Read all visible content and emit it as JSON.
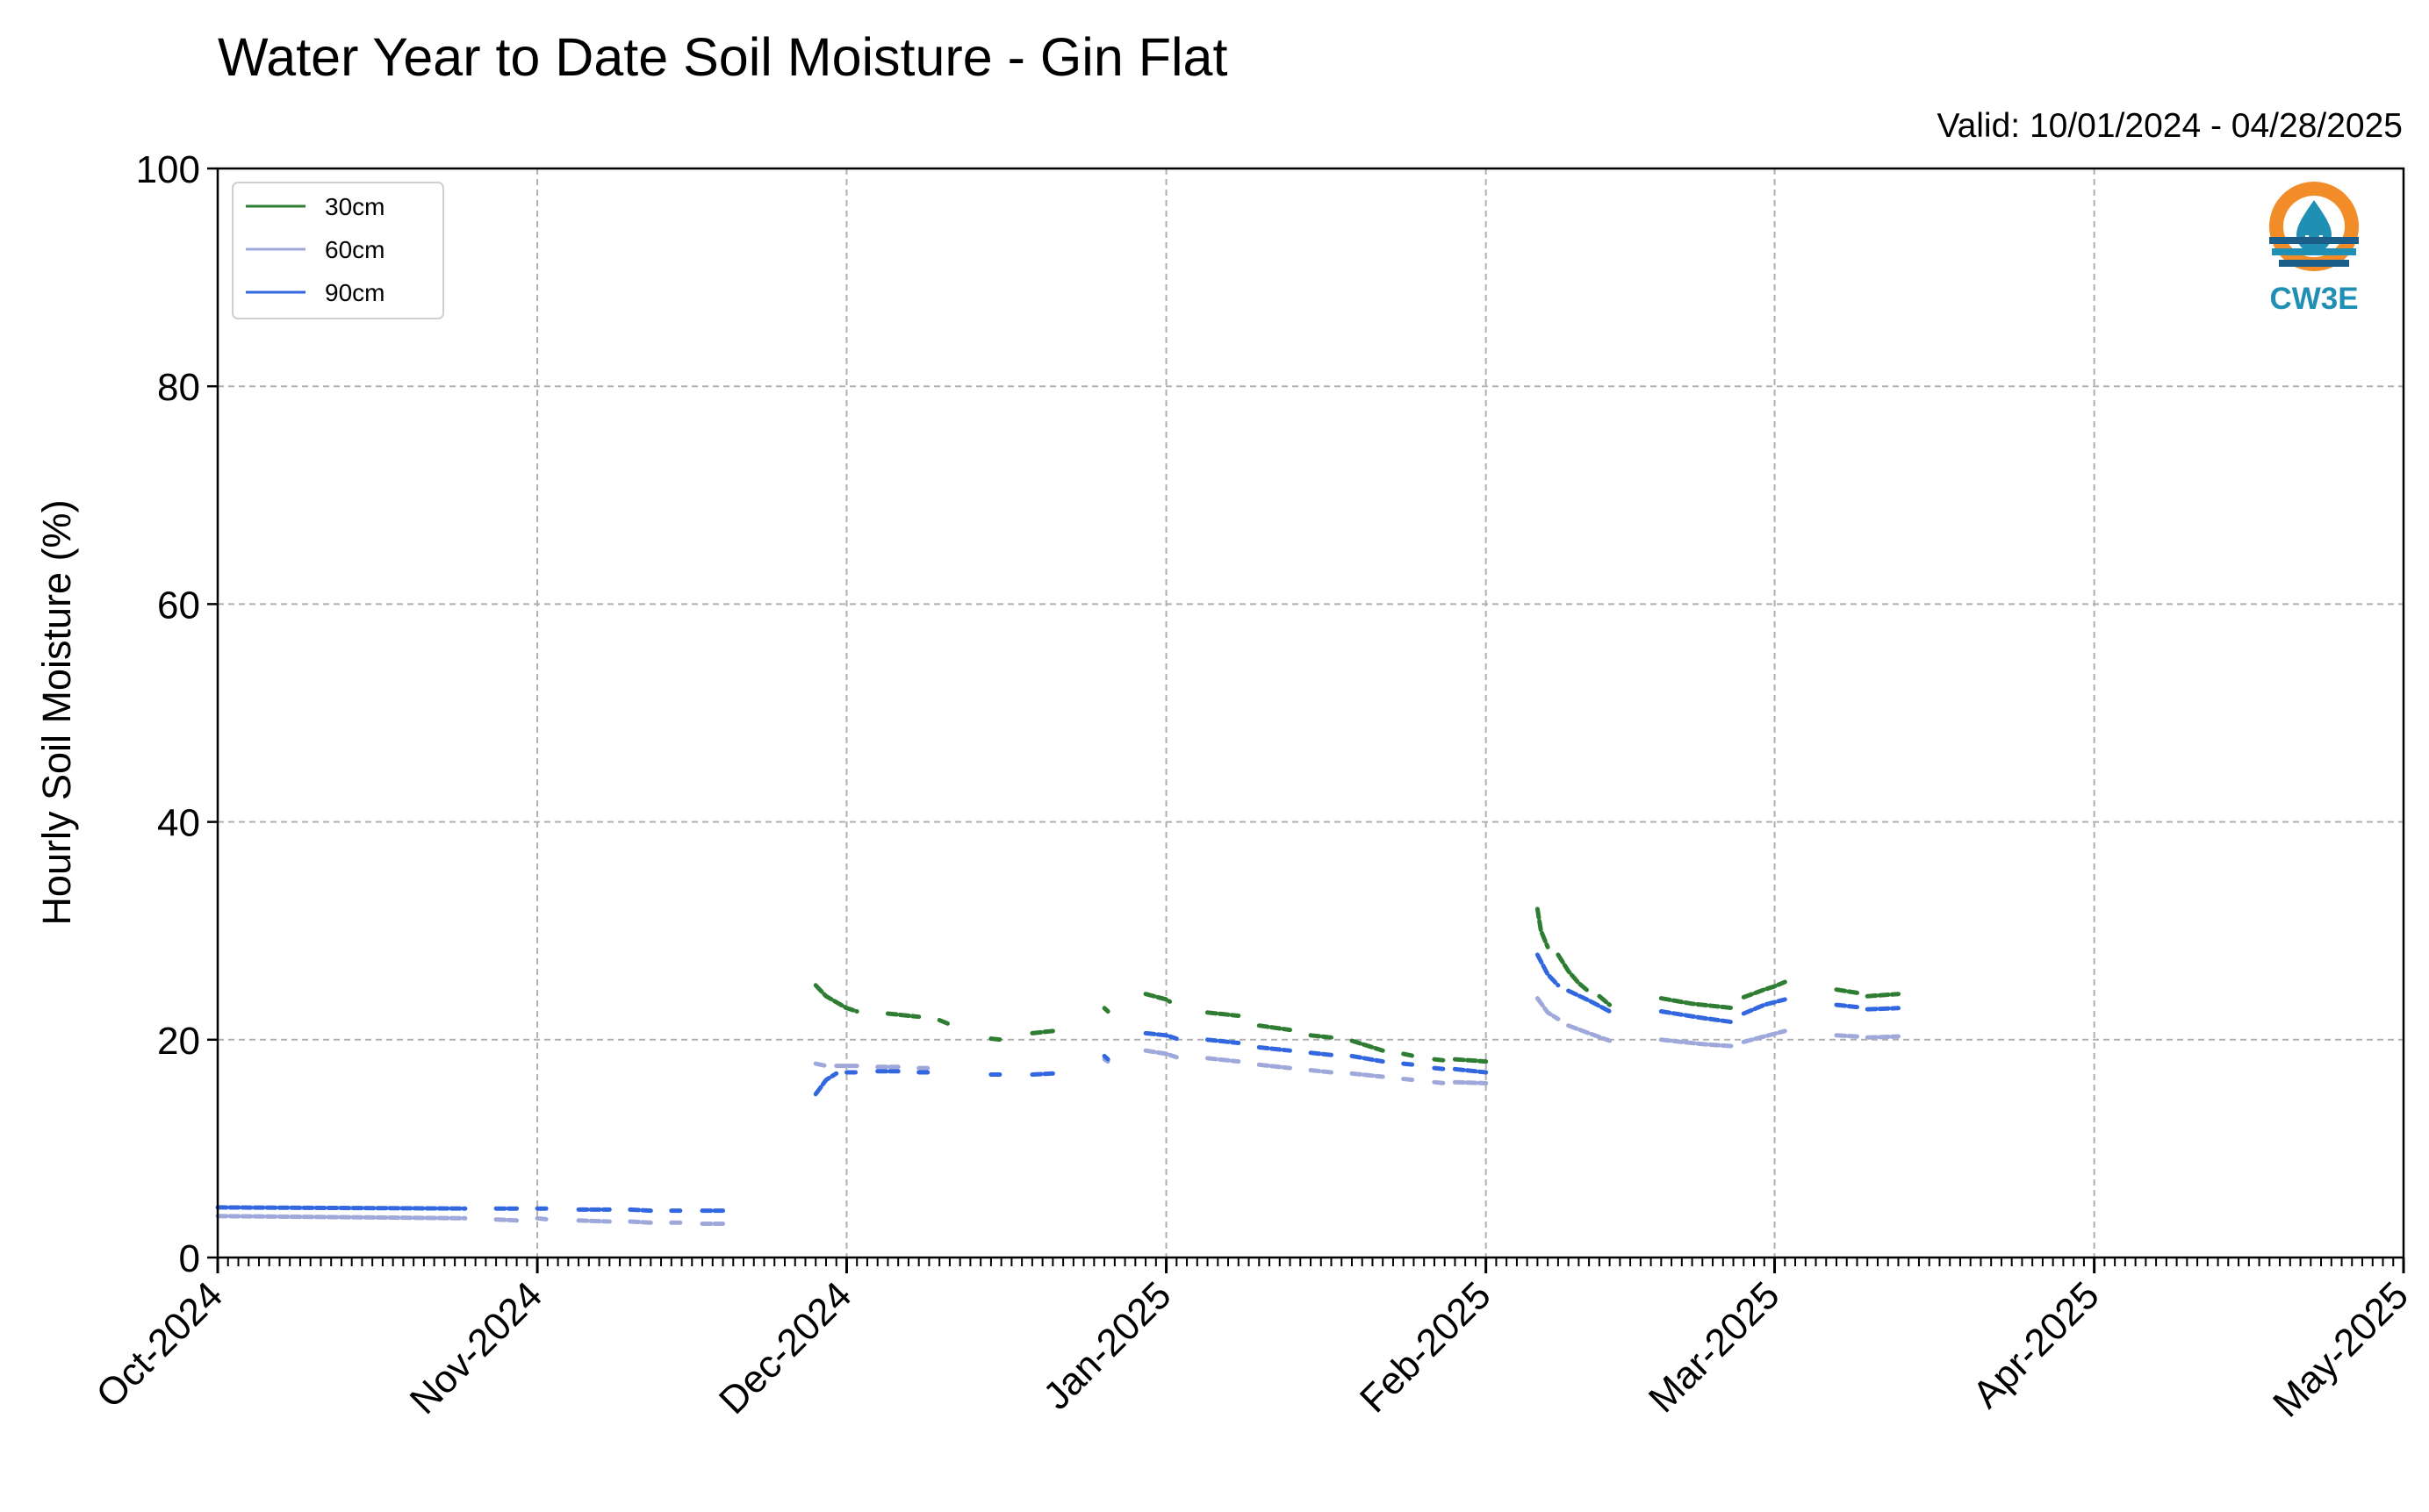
{
  "title": "Water Year to Date Soil Moisture - Gin Flat",
  "valid_text": "Valid: 10/01/2024 - 04/28/2025",
  "logo": {
    "icon": "water-drop-icon",
    "text": "CW3E",
    "colors": {
      "orange": "#F28C28",
      "teal": "#1F8FB3",
      "dark": "#1B5E8A"
    }
  },
  "chart_data": {
    "type": "line",
    "title": "Water Year to Date Soil Moisture - Gin Flat",
    "xlabel": "",
    "ylabel": "Hourly Soil Moisture (%)",
    "ylim": [
      0,
      100
    ],
    "xlim": [
      "2024-10-01",
      "2025-05-01"
    ],
    "yticks": [
      0,
      20,
      40,
      60,
      80,
      100
    ],
    "xticks": [
      {
        "date": "2024-10-01",
        "label": "Oct-2024"
      },
      {
        "date": "2024-11-01",
        "label": "Nov-2024"
      },
      {
        "date": "2024-12-01",
        "label": "Dec-2024"
      },
      {
        "date": "2025-01-01",
        "label": "Jan-2025"
      },
      {
        "date": "2025-02-01",
        "label": "Feb-2025"
      },
      {
        "date": "2025-03-01",
        "label": "Mar-2025"
      },
      {
        "date": "2025-04-01",
        "label": "Apr-2025"
      },
      {
        "date": "2025-05-01",
        "label": "May-2025"
      }
    ],
    "grid": true,
    "legend_position": "top-left",
    "series": [
      {
        "name": "30cm",
        "color": "#2E7D32",
        "segments": [
          [
            [
              "2024-11-28",
              25.0
            ],
            [
              "2024-11-29",
              24.0
            ],
            [
              "2024-12-01",
              22.9
            ],
            [
              "2024-12-02",
              22.6
            ]
          ],
          [
            [
              "2024-12-05",
              22.4
            ],
            [
              "2024-12-08",
              22.1
            ]
          ],
          [
            [
              "2024-12-10",
              21.8
            ],
            [
              "2024-12-11",
              21.4
            ]
          ],
          [
            [
              "2024-12-15",
              20.1
            ],
            [
              "2024-12-16",
              20.0
            ]
          ],
          [
            [
              "2024-12-19",
              20.6
            ],
            [
              "2024-12-21",
              20.8
            ]
          ],
          [
            [
              "2024-12-26",
              22.9
            ],
            [
              "2024-12-26",
              22.6
            ]
          ],
          [
            [
              "2024-12-30",
              24.2
            ],
            [
              "2025-01-01",
              23.7
            ],
            [
              "2025-01-01",
              23.5
            ]
          ],
          [
            [
              "2025-01-05",
              22.5
            ],
            [
              "2025-01-08",
              22.2
            ]
          ],
          [
            [
              "2025-01-10",
              21.3
            ],
            [
              "2025-01-13",
              20.9
            ]
          ],
          [
            [
              "2025-01-15",
              20.4
            ],
            [
              "2025-01-17",
              20.2
            ]
          ],
          [
            [
              "2025-01-19",
              19.9
            ],
            [
              "2025-01-22",
              19.0
            ]
          ],
          [
            [
              "2025-01-24",
              18.7
            ],
            [
              "2025-01-25",
              18.5
            ]
          ],
          [
            [
              "2025-01-27",
              18.2
            ],
            [
              "2025-01-28",
              18.1
            ]
          ],
          [
            [
              "2025-01-29",
              18.2
            ],
            [
              "2025-02-01",
              18.0
            ]
          ],
          [
            [
              "2025-02-06",
              32.0
            ],
            [
              "2025-02-06",
              30.0
            ],
            [
              "2025-02-07",
              28.5
            ]
          ],
          [
            [
              "2025-02-08",
              27.8
            ],
            [
              "2025-02-09",
              26.3
            ],
            [
              "2025-02-10",
              25.2
            ],
            [
              "2025-02-11",
              24.4
            ]
          ],
          [
            [
              "2025-02-12",
              24.0
            ],
            [
              "2025-02-13",
              23.2
            ]
          ],
          [
            [
              "2025-02-18",
              23.8
            ],
            [
              "2025-02-21",
              23.3
            ],
            [
              "2025-02-25",
              22.9
            ]
          ],
          [
            [
              "2025-02-26",
              23.9
            ],
            [
              "2025-02-28",
              24.6
            ],
            [
              "2025-03-01",
              24.9
            ],
            [
              "2025-03-02",
              25.3
            ]
          ],
          [
            [
              "2025-03-07",
              24.6
            ],
            [
              "2025-03-09",
              24.3
            ]
          ],
          [
            [
              "2025-03-10",
              24.0
            ],
            [
              "2025-03-13",
              24.2
            ]
          ]
        ]
      },
      {
        "name": "60cm",
        "color": "#9FA8DA",
        "segments": [
          [
            [
              "2024-10-01",
              3.8
            ],
            [
              "2024-10-25",
              3.6
            ]
          ],
          [
            [
              "2024-10-28",
              3.5
            ],
            [
              "2024-10-30",
              3.4
            ]
          ],
          [
            [
              "2024-11-01",
              3.6
            ],
            [
              "2024-11-02",
              3.5
            ]
          ],
          [
            [
              "2024-11-05",
              3.4
            ],
            [
              "2024-11-08",
              3.3
            ]
          ],
          [
            [
              "2024-11-10",
              3.3
            ],
            [
              "2024-11-12",
              3.2
            ]
          ],
          [
            [
              "2024-11-14",
              3.2
            ],
            [
              "2024-11-15",
              3.2
            ]
          ],
          [
            [
              "2024-11-17",
              3.1
            ],
            [
              "2024-11-19",
              3.1
            ]
          ],
          [
            [
              "2024-11-28",
              17.8
            ],
            [
              "2024-11-29",
              17.6
            ]
          ],
          [
            [
              "2024-11-30",
              17.6
            ],
            [
              "2024-12-02",
              17.6
            ]
          ],
          [
            [
              "2024-12-04",
              17.5
            ],
            [
              "2024-12-06",
              17.5
            ]
          ],
          [
            [
              "2024-12-08",
              17.4
            ],
            [
              "2024-12-09",
              17.4
            ]
          ],
          [
            [
              "2024-12-26",
              18.2
            ],
            [
              "2024-12-26",
              18.0
            ]
          ],
          [
            [
              "2024-12-30",
              19.0
            ],
            [
              "2025-01-01",
              18.7
            ],
            [
              "2025-01-02",
              18.4
            ]
          ],
          [
            [
              "2025-01-05",
              18.3
            ],
            [
              "2025-01-08",
              18.0
            ]
          ],
          [
            [
              "2025-01-10",
              17.7
            ],
            [
              "2025-01-13",
              17.4
            ]
          ],
          [
            [
              "2025-01-15",
              17.2
            ],
            [
              "2025-01-17",
              17.0
            ]
          ],
          [
            [
              "2025-01-19",
              16.9
            ],
            [
              "2025-01-22",
              16.6
            ]
          ],
          [
            [
              "2025-01-24",
              16.4
            ],
            [
              "2025-01-25",
              16.3
            ]
          ],
          [
            [
              "2025-01-27",
              16.1
            ],
            [
              "2025-01-28",
              16.0
            ]
          ],
          [
            [
              "2025-01-29",
              16.1
            ],
            [
              "2025-02-01",
              16.0
            ]
          ],
          [
            [
              "2025-02-06",
              23.8
            ],
            [
              "2025-02-07",
              22.5
            ],
            [
              "2025-02-08",
              21.9
            ]
          ],
          [
            [
              "2025-02-09",
              21.3
            ],
            [
              "2025-02-11",
              20.6
            ],
            [
              "2025-02-13",
              19.9
            ]
          ],
          [
            [
              "2025-02-18",
              20.0
            ],
            [
              "2025-02-22",
              19.6
            ],
            [
              "2025-02-25",
              19.4
            ]
          ],
          [
            [
              "2025-02-26",
              19.8
            ],
            [
              "2025-02-28",
              20.3
            ],
            [
              "2025-03-02",
              20.8
            ]
          ],
          [
            [
              "2025-03-07",
              20.4
            ],
            [
              "2025-03-09",
              20.3
            ]
          ],
          [
            [
              "2025-03-10",
              20.2
            ],
            [
              "2025-03-13",
              20.3
            ]
          ]
        ]
      },
      {
        "name": "90cm",
        "color": "#3367E0",
        "segments": [
          [
            [
              "2024-10-01",
              4.6
            ],
            [
              "2024-10-25",
              4.5
            ]
          ],
          [
            [
              "2024-10-28",
              4.5
            ],
            [
              "2024-10-30",
              4.5
            ]
          ],
          [
            [
              "2024-11-01",
              4.5
            ],
            [
              "2024-11-02",
              4.5
            ]
          ],
          [
            [
              "2024-11-05",
              4.4
            ],
            [
              "2024-11-08",
              4.4
            ]
          ],
          [
            [
              "2024-11-10",
              4.4
            ],
            [
              "2024-11-12",
              4.3
            ]
          ],
          [
            [
              "2024-11-14",
              4.3
            ],
            [
              "2024-11-15",
              4.3
            ]
          ],
          [
            [
              "2024-11-17",
              4.3
            ],
            [
              "2024-11-19",
              4.3
            ]
          ],
          [
            [
              "2024-11-28",
              15.0
            ],
            [
              "2024-11-29",
              16.3
            ],
            [
              "2024-11-30",
              16.9
            ]
          ],
          [
            [
              "2024-12-01",
              17.0
            ],
            [
              "2024-12-02",
              17.0
            ]
          ],
          [
            [
              "2024-12-04",
              17.1
            ],
            [
              "2024-12-06",
              17.1
            ]
          ],
          [
            [
              "2024-12-08",
              17.0
            ],
            [
              "2024-12-09",
              17.0
            ]
          ],
          [
            [
              "2024-12-15",
              16.8
            ],
            [
              "2024-12-16",
              16.8
            ]
          ],
          [
            [
              "2024-12-19",
              16.8
            ],
            [
              "2024-12-21",
              16.9
            ]
          ],
          [
            [
              "2024-12-26",
              18.5
            ],
            [
              "2024-12-26",
              18.2
            ]
          ],
          [
            [
              "2024-12-30",
              20.6
            ],
            [
              "2025-01-01",
              20.4
            ],
            [
              "2025-01-02",
              20.1
            ]
          ],
          [
            [
              "2025-01-05",
              20.0
            ],
            [
              "2025-01-08",
              19.7
            ]
          ],
          [
            [
              "2025-01-10",
              19.3
            ],
            [
              "2025-01-13",
              19.0
            ]
          ],
          [
            [
              "2025-01-15",
              18.8
            ],
            [
              "2025-01-17",
              18.6
            ]
          ],
          [
            [
              "2025-01-19",
              18.5
            ],
            [
              "2025-01-22",
              18.0
            ]
          ],
          [
            [
              "2025-01-24",
              17.8
            ],
            [
              "2025-01-25",
              17.7
            ]
          ],
          [
            [
              "2025-01-27",
              17.4
            ],
            [
              "2025-01-28",
              17.3
            ]
          ],
          [
            [
              "2025-01-29",
              17.3
            ],
            [
              "2025-02-01",
              17.0
            ]
          ],
          [
            [
              "2025-02-06",
              27.8
            ],
            [
              "2025-02-07",
              26.0
            ],
            [
              "2025-02-08",
              25.0
            ]
          ],
          [
            [
              "2025-02-09",
              24.5
            ],
            [
              "2025-02-11",
              23.6
            ],
            [
              "2025-02-13",
              22.6
            ]
          ],
          [
            [
              "2025-02-18",
              22.6
            ],
            [
              "2025-02-22",
              22.0
            ],
            [
              "2025-02-25",
              21.6
            ]
          ],
          [
            [
              "2025-02-26",
              22.4
            ],
            [
              "2025-02-28",
              23.2
            ],
            [
              "2025-03-02",
              23.7
            ]
          ],
          [
            [
              "2025-03-07",
              23.2
            ],
            [
              "2025-03-09",
              23.0
            ]
          ],
          [
            [
              "2025-03-10",
              22.8
            ],
            [
              "2025-03-13",
              22.9
            ]
          ]
        ]
      }
    ]
  }
}
